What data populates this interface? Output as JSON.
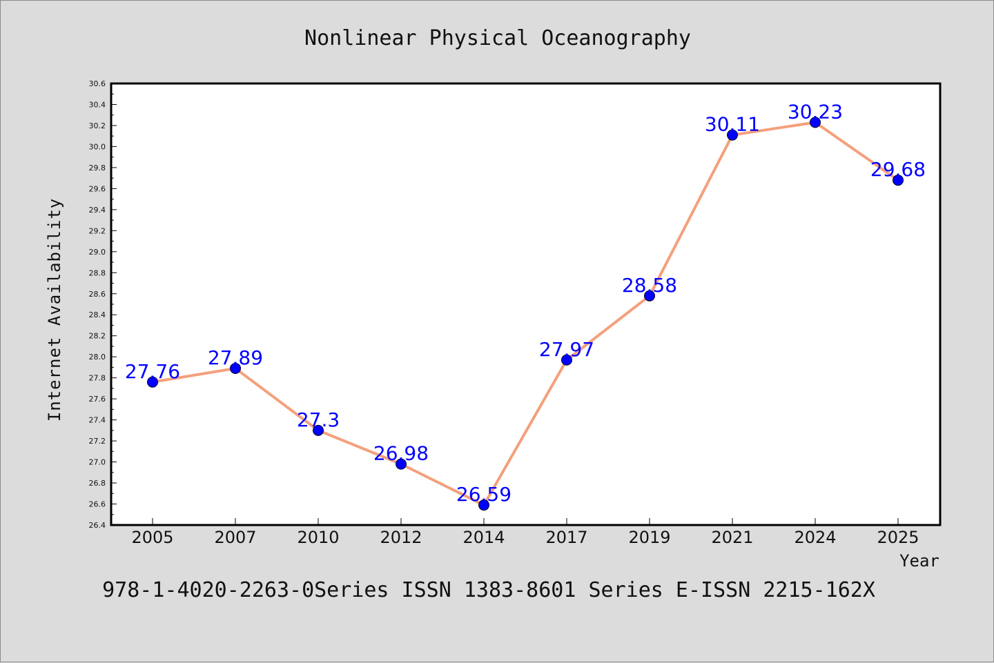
{
  "chart_data": {
    "type": "line",
    "title": "Nonlinear Physical Oceanography",
    "xlabel": "Year",
    "ylabel": "Internet Availability",
    "categories": [
      "2005",
      "2007",
      "2010",
      "2012",
      "2014",
      "2017",
      "2019",
      "2021",
      "2024",
      "2025"
    ],
    "values": [
      27.76,
      27.89,
      27.3,
      26.98,
      26.59,
      27.97,
      28.58,
      30.11,
      30.23,
      29.68
    ],
    "value_labels": [
      "27.76",
      "27.89",
      "27.3",
      "26.98",
      "26.59",
      "27.97",
      "28.58",
      "30.11",
      "30.23",
      "29.68"
    ],
    "ylim": [
      26.4,
      30.6
    ],
    "yticks": [
      "26.4",
      "26.6",
      "26.8",
      "27.0",
      "27.2",
      "27.4",
      "27.6",
      "27.8",
      "28.0",
      "28.2",
      "28.4",
      "28.6",
      "28.8",
      "29.0",
      "29.2",
      "29.4",
      "29.6",
      "29.8",
      "30.0",
      "30.2",
      "30.4",
      "30.6"
    ],
    "grid": false,
    "line_color": "#f4a07c",
    "marker_color": "#0000ff",
    "label_color": "#0000ff"
  },
  "footer": "978-1-4020-2263-0Series ISSN 1383-8601 Series E-ISSN 2215-162X"
}
